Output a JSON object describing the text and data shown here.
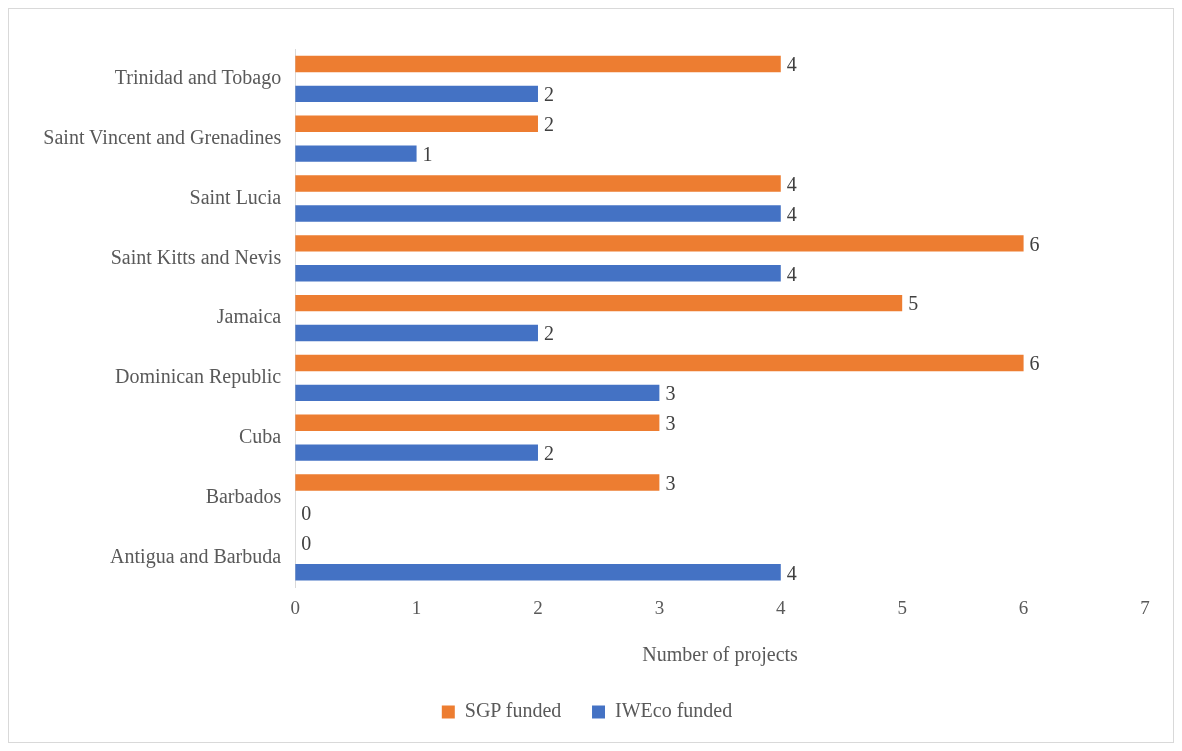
{
  "chart_data": {
    "type": "bar",
    "orientation": "horizontal",
    "xlabel": "Number of projects",
    "categories": [
      "Trinidad and Tobago",
      "Saint Vincent and Grenadines",
      "Saint Lucia",
      "Saint Kitts and Nevis",
      "Jamaica",
      "Dominican Republic",
      "Cuba",
      "Barbados",
      "Antigua and Barbuda"
    ],
    "series": [
      {
        "name": "SGP funded",
        "color": "#ed7d31",
        "values": [
          4,
          2,
          4,
          6,
          5,
          6,
          3,
          3,
          0
        ]
      },
      {
        "name": "IWEco funded",
        "color": "#4472c4",
        "values": [
          2,
          1,
          4,
          4,
          2,
          3,
          2,
          0,
          4
        ]
      }
    ],
    "xlim": [
      0,
      7
    ],
    "xticks": [
      0,
      1,
      2,
      3,
      4,
      5,
      6,
      7
    ],
    "grid": false,
    "legend": "bottom",
    "data_labels": true
  }
}
